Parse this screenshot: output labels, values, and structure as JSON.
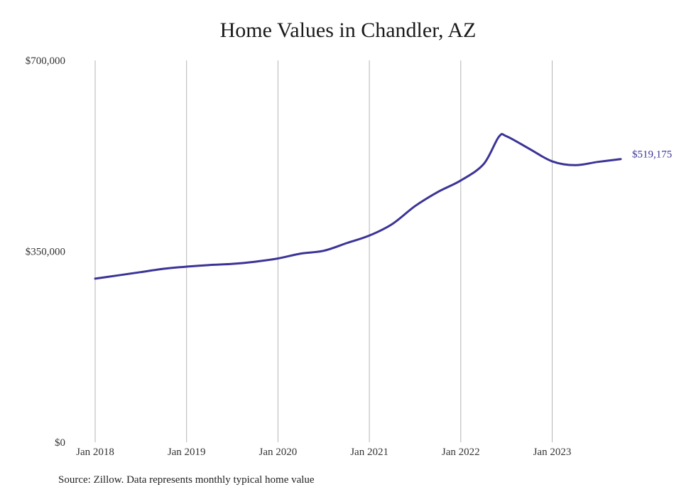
{
  "chart_data": {
    "type": "line",
    "title": "Home Values in Chandler, AZ",
    "xlabel": "",
    "ylabel": "",
    "ylim": [
      0,
      700000
    ],
    "yticks": [
      {
        "value": 0,
        "label": "$0"
      },
      {
        "value": 350000,
        "label": "$350,000"
      },
      {
        "value": 700000,
        "label": "$700,000"
      }
    ],
    "xlim": [
      "2018-01",
      "2023-10"
    ],
    "xticks": [
      {
        "value": "2018-01",
        "label": "Jan 2018"
      },
      {
        "value": "2019-01",
        "label": "Jan 2019"
      },
      {
        "value": "2020-01",
        "label": "Jan 2020"
      },
      {
        "value": "2021-01",
        "label": "Jan 2021"
      },
      {
        "value": "2022-01",
        "label": "Jan 2022"
      },
      {
        "value": "2023-01",
        "label": "Jan 2023"
      }
    ],
    "grid": {
      "vertical": true,
      "horizontal": false
    },
    "line_color": "#3b3497",
    "end_label": "$519,175",
    "series": [
      {
        "points": [
          {
            "x": "2018-01",
            "y": 300000
          },
          {
            "x": "2018-04",
            "y": 306000
          },
          {
            "x": "2018-07",
            "y": 312000
          },
          {
            "x": "2018-10",
            "y": 318000
          },
          {
            "x": "2019-01",
            "y": 322000
          },
          {
            "x": "2019-04",
            "y": 325000
          },
          {
            "x": "2019-07",
            "y": 327000
          },
          {
            "x": "2019-10",
            "y": 331000
          },
          {
            "x": "2020-01",
            "y": 337000
          },
          {
            "x": "2020-04",
            "y": 346000
          },
          {
            "x": "2020-07",
            "y": 351000
          },
          {
            "x": "2020-10",
            "y": 365000
          },
          {
            "x": "2021-01",
            "y": 379000
          },
          {
            "x": "2021-04",
            "y": 400000
          },
          {
            "x": "2021-07",
            "y": 433000
          },
          {
            "x": "2021-10",
            "y": 459000
          },
          {
            "x": "2022-01",
            "y": 480000
          },
          {
            "x": "2022-04",
            "y": 510000
          },
          {
            "x": "2022-06",
            "y": 560000
          },
          {
            "x": "2022-07",
            "y": 561000
          },
          {
            "x": "2022-10",
            "y": 538000
          },
          {
            "x": "2023-01",
            "y": 515000
          },
          {
            "x": "2023-04",
            "y": 508000
          },
          {
            "x": "2023-07",
            "y": 514000
          },
          {
            "x": "2023-10",
            "y": 519175
          }
        ]
      }
    ]
  },
  "source_note": "Source: Zillow. Data represents monthly typical home value"
}
